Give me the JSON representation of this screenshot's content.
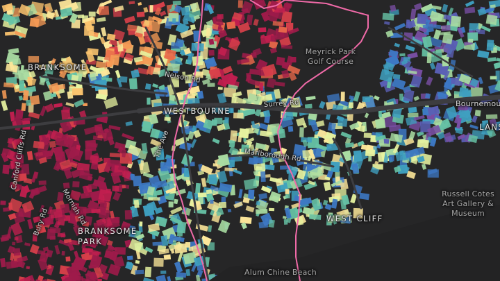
{
  "map": {
    "labels": {
      "branksome": "BRANKSOME",
      "westbourne": "WESTBOURNE",
      "branksome_park": "BRANKSOME PARK",
      "west_cliff": "WEST CLIFF",
      "bournemouth": "Bournemouth",
      "meyrick_park": "Meyrick Park Golf Course",
      "russell_cotes": "Russell Cotes Art Gallery & Museum",
      "alum_chine_beach": "Alum Chine Beach",
      "nelson_rd": "Nelson Rd",
      "surrey_rd": "Surrey Rd",
      "marlborough_rd": "Marlborough Rd",
      "canford_cliffs_rd": "Canford Cliffs Rd",
      "bury_rd": "Bury Rd",
      "mornish_rd": "Mornish Rd",
      "the_ave": "The Ave",
      "lansdowne_partial": "LANS"
    },
    "colors": {
      "background": "#262627",
      "boundary": "#f06aa8",
      "roads": "#3f3f42"
    }
  }
}
